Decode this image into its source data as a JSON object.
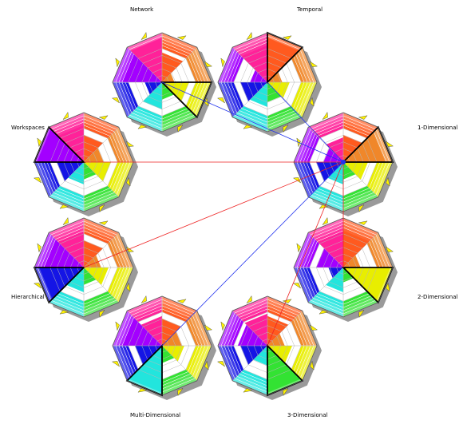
{
  "labels": {
    "network": "Network",
    "temporal": "Temporal",
    "workspaces": "Workspaces",
    "one_dimensional": "1-Dimensional",
    "hierarchical": "Hierarchical",
    "two_dimensional": "2-Dimensional",
    "multi_dimensional": "Multi-Dimensional",
    "three_dimensional": "3-Dimensional"
  },
  "colors": {
    "sector_colors": [
      "#FF5A1F",
      "#F0872A",
      "#E8EE00",
      "#33E233",
      "#22E5DD",
      "#1515E5",
      "#A300FF",
      "#FF2299"
    ],
    "marker": "#FFF200",
    "red_link": "#EE2222",
    "blue_link": "#2233EE"
  },
  "charts": [
    {
      "id": "network",
      "fills": [
        0.6,
        0.25,
        0.55,
        0.35,
        0.55,
        0.35,
        0.8,
        0.9
      ],
      "highlight": 2
    },
    {
      "id": "temporal",
      "fills": [
        0.9,
        0.3,
        0.45,
        0.4,
        0.5,
        0.55,
        0.35,
        0.75
      ],
      "highlight": 0
    },
    {
      "id": "one-dimensional",
      "fills": [
        0.55,
        0.85,
        0.5,
        0.35,
        0.45,
        0.55,
        0.4,
        0.5
      ],
      "highlight": 1
    },
    {
      "id": "two-dimensional",
      "fills": [
        0.75,
        0.35,
        0.95,
        0.3,
        0.5,
        0.3,
        0.55,
        0.7
      ],
      "highlight": 2
    },
    {
      "id": "three-dimensional",
      "fills": [
        0.6,
        0.35,
        0.5,
        0.95,
        0.4,
        0.55,
        0.6,
        0.65
      ],
      "highlight": 3
    },
    {
      "id": "multi-dimensional",
      "fills": [
        0.55,
        0.4,
        0.45,
        0.35,
        0.95,
        0.55,
        0.8,
        0.6
      ],
      "highlight": 4
    },
    {
      "id": "hierarchical",
      "fills": [
        0.55,
        0.35,
        0.5,
        0.35,
        0.5,
        0.9,
        0.8,
        0.7
      ],
      "highlight": 5
    },
    {
      "id": "workspaces",
      "fills": [
        0.55,
        0.4,
        0.55,
        0.35,
        0.45,
        0.55,
        0.95,
        0.75
      ],
      "highlight": 6
    }
  ]
}
